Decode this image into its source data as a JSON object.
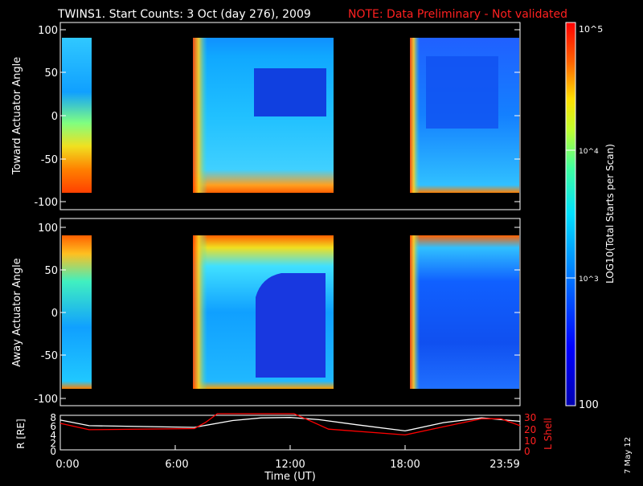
{
  "header": {
    "title": "TWINS1. Start Counts:  3 Oct (day 276), 2009",
    "note": "NOTE: Data Preliminary - Not validated",
    "note_color": "#ff2020"
  },
  "footer": {
    "xlabel": "Time (UT)",
    "date_stamp": "7 May 12"
  },
  "colorbar": {
    "label": "LOG10(Total Starts per Scan)",
    "ticks": [
      "10^5",
      "10^4",
      "10^3",
      "100"
    ]
  },
  "chart_data": [
    {
      "type": "heatmap",
      "name": "toward",
      "ylabel": "Toward Actuator Angle",
      "ylim": [
        -110,
        110
      ],
      "yticks": [
        100,
        50,
        0,
        -50,
        -100
      ],
      "xlim_hours": [
        0,
        24
      ],
      "data_blocks_hours": [
        [
          0.1,
          1.55
        ],
        [
          6.95,
          14.1
        ],
        [
          18.15,
          23.99
        ]
      ],
      "zlim_log10": [
        2,
        5
      ]
    },
    {
      "type": "heatmap",
      "name": "away",
      "ylabel": "Away Actuator Angle",
      "ylim": [
        -110,
        110
      ],
      "yticks": [
        100,
        50,
        0,
        -50,
        -100
      ],
      "xlim_hours": [
        0,
        24
      ],
      "data_blocks_hours": [
        [
          0.1,
          1.55
        ],
        [
          6.95,
          14.1
        ],
        [
          18.15,
          23.99
        ]
      ],
      "zlim_log10": [
        2,
        5
      ]
    },
    {
      "type": "line",
      "name": "orbit",
      "ylabel_left": "R [RE]",
      "ylabel_right": "L Shell",
      "ylim_left": [
        0,
        8
      ],
      "yticks_left": [
        0,
        2,
        4,
        6,
        8
      ],
      "ylim_right": [
        0,
        30
      ],
      "yticks_right": [
        0,
        10,
        20,
        30
      ],
      "xlim_hours": [
        0,
        24
      ],
      "xticks": [
        "0:00",
        "6:00",
        "12:00",
        "18:00",
        "23:59"
      ],
      "series": [
        {
          "name": "R",
          "color": "#ffffff",
          "x": [
            0,
            1.5,
            7,
            9,
            10.5,
            12,
            13.5,
            15.5,
            18,
            20,
            22,
            24
          ],
          "y": [
            6.9,
            5.6,
            5.2,
            6.8,
            7.4,
            7.5,
            7.0,
            5.8,
            4.4,
            6.3,
            7.4,
            6.6
          ]
        },
        {
          "name": "L Shell",
          "color": "#ff0000",
          "x": [
            0,
            1.5,
            7,
            7.6,
            8.2,
            12.2,
            12.8,
            14,
            18,
            20,
            22,
            23,
            24
          ],
          "y": [
            23,
            17.5,
            18.5,
            24,
            32,
            32,
            27,
            18,
            13,
            20,
            27,
            27,
            21
          ]
        }
      ]
    }
  ]
}
